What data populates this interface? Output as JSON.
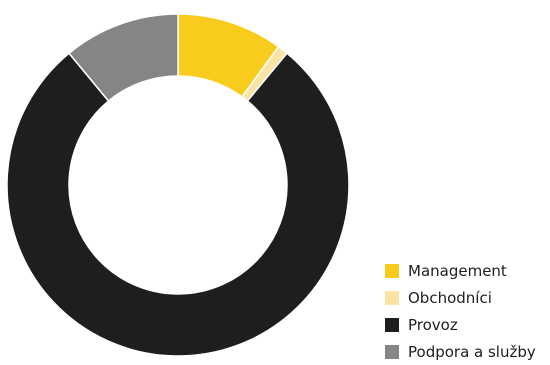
{
  "chart_data": {
    "type": "pie",
    "variant": "donut",
    "title": "",
    "legend_position": "bottom-right",
    "series": [
      {
        "name": "Management",
        "value": 10.0,
        "color": "#F9CB1C"
      },
      {
        "name": "Obchodníci",
        "value": 1.0,
        "color": "#FBE3A4"
      },
      {
        "name": "Provoz",
        "value": 78.0,
        "color": "#1E1E1E"
      },
      {
        "name": "Podpora a služby",
        "value": 11.0,
        "color": "#858585"
      }
    ]
  }
}
